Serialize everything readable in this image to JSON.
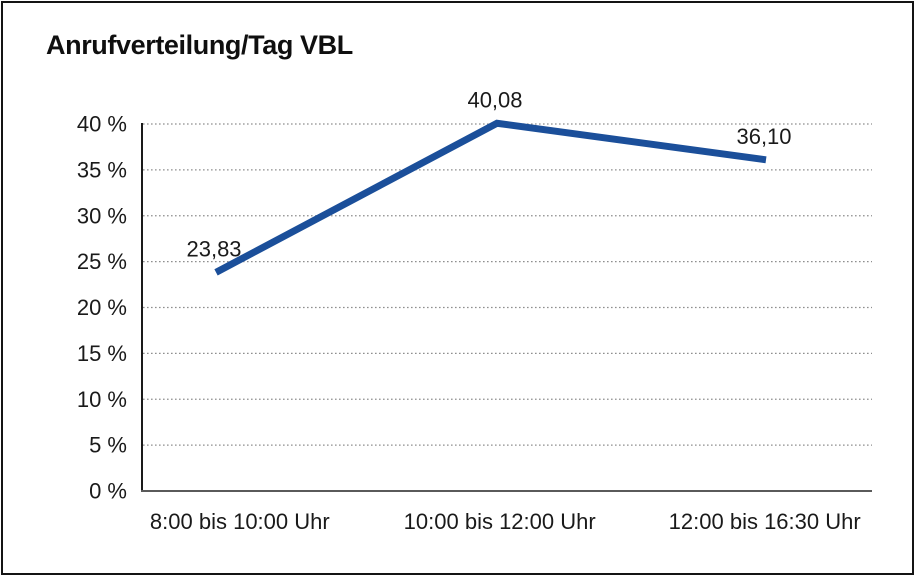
{
  "window": {
    "background_color": "#ffffff",
    "border_color": "#141414"
  },
  "chart_data": {
    "type": "line",
    "title": "Anrufverteilung/Tag VBL",
    "categories": [
      "8:00 bis 10:00 Uhr",
      "10:00 bis 12:00 Uhr",
      "12:00 bis 16:30 Uhr"
    ],
    "values": [
      23.83,
      40.08,
      36.1
    ],
    "point_labels": [
      "23,83",
      "40,08",
      "36,10"
    ],
    "y_ticks": [
      {
        "value": 0,
        "label": "0 %"
      },
      {
        "value": 5,
        "label": "5 %"
      },
      {
        "value": 10,
        "label": "10 %"
      },
      {
        "value": 15,
        "label": "15 %"
      },
      {
        "value": 20,
        "label": "20 %"
      },
      {
        "value": 25,
        "label": "25 %"
      },
      {
        "value": 30,
        "label": "30 %"
      },
      {
        "value": 35,
        "label": "35 %"
      },
      {
        "value": 40,
        "label": "40 %"
      }
    ],
    "ylim": [
      0,
      40
    ],
    "xlabel": "",
    "ylabel": "",
    "legend": "none",
    "grid": "horizontal-dotted",
    "colors": {
      "line": "#1b4f9a",
      "grid": "#8f8f8f",
      "y_axis": "#1a1a1a",
      "x_axis": "#5a5a5a",
      "text": "#1a1a1a"
    }
  }
}
